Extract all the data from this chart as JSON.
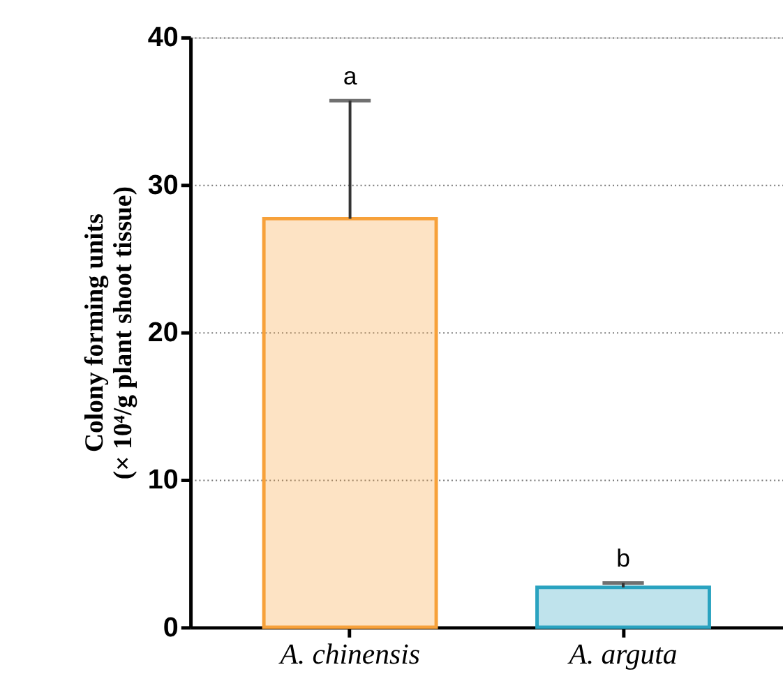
{
  "chart_data": {
    "type": "bar",
    "categories": [
      "A. chinensis",
      "A. arguta"
    ],
    "values": [
      27.7,
      2.7
    ],
    "errors": [
      [
        27.7,
        35.7
      ],
      [
        2.7,
        3.0
      ]
    ],
    "colors": [
      "#f7a13a",
      "#2aa3c0"
    ],
    "ylabel": "Colony forming units\n(× 10⁴/g plant shoot tissue)",
    "ylim": [
      0,
      40
    ],
    "yticks": [
      0,
      10,
      20,
      30,
      40
    ],
    "grid": "y",
    "annotations": [
      {
        "text": "a",
        "x": "A. chinensis",
        "y": 35.7
      },
      {
        "text": "b",
        "x": "A. arguta",
        "y": 3.0
      }
    ]
  }
}
